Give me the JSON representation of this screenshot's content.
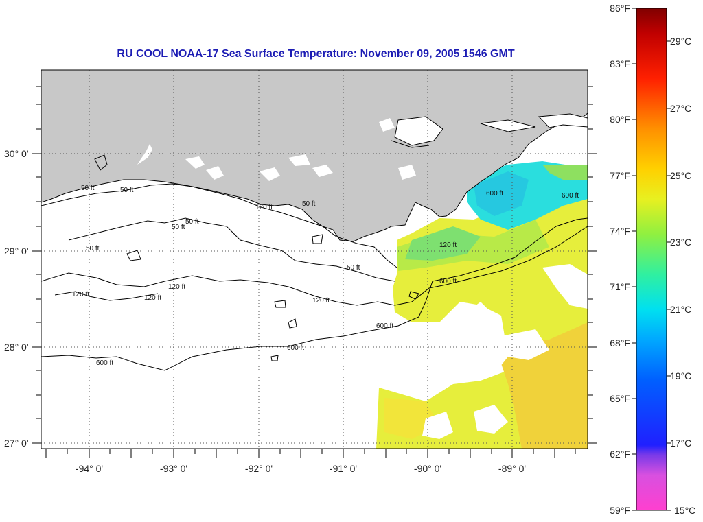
{
  "title": "RU COOL  NOAA-17  Sea Surface Temperature:  November 09, 2005 1546 GMT",
  "map": {
    "lat_labels": [
      "30° 0'",
      "29° 0'",
      "28° 0'",
      "27° 0'"
    ],
    "lon_labels": [
      "-94° 0'",
      "-93° 0'",
      "-92° 0'",
      "-91° 0'",
      "-90° 0'",
      "-89° 0'"
    ],
    "colors": {
      "land": "#c8c8c8",
      "water": "#ffffff",
      "frame": "#000000"
    }
  },
  "contours": {
    "labels": [
      "50 ft",
      "50 ft",
      "50 ft",
      "50 ft",
      "50 ft",
      "50 ft",
      "120 ft",
      "120 ft",
      "120 ft",
      "120 ft",
      "120 ft",
      "600 ft",
      "600 ft",
      "600 ft",
      "600 ft",
      "50 ft",
      "120 ft",
      "600 ft",
      "600 ft"
    ]
  },
  "colorbar": {
    "f_labels": [
      "86°F",
      "83°F",
      "80°F",
      "77°F",
      "74°F",
      "71°F",
      "68°F",
      "65°F",
      "62°F",
      "59°F"
    ],
    "c_labels": [
      "29°C",
      "27°C",
      "25°C",
      "23°C",
      "21°C",
      "19°C",
      "17°C",
      "15°C"
    ]
  }
}
